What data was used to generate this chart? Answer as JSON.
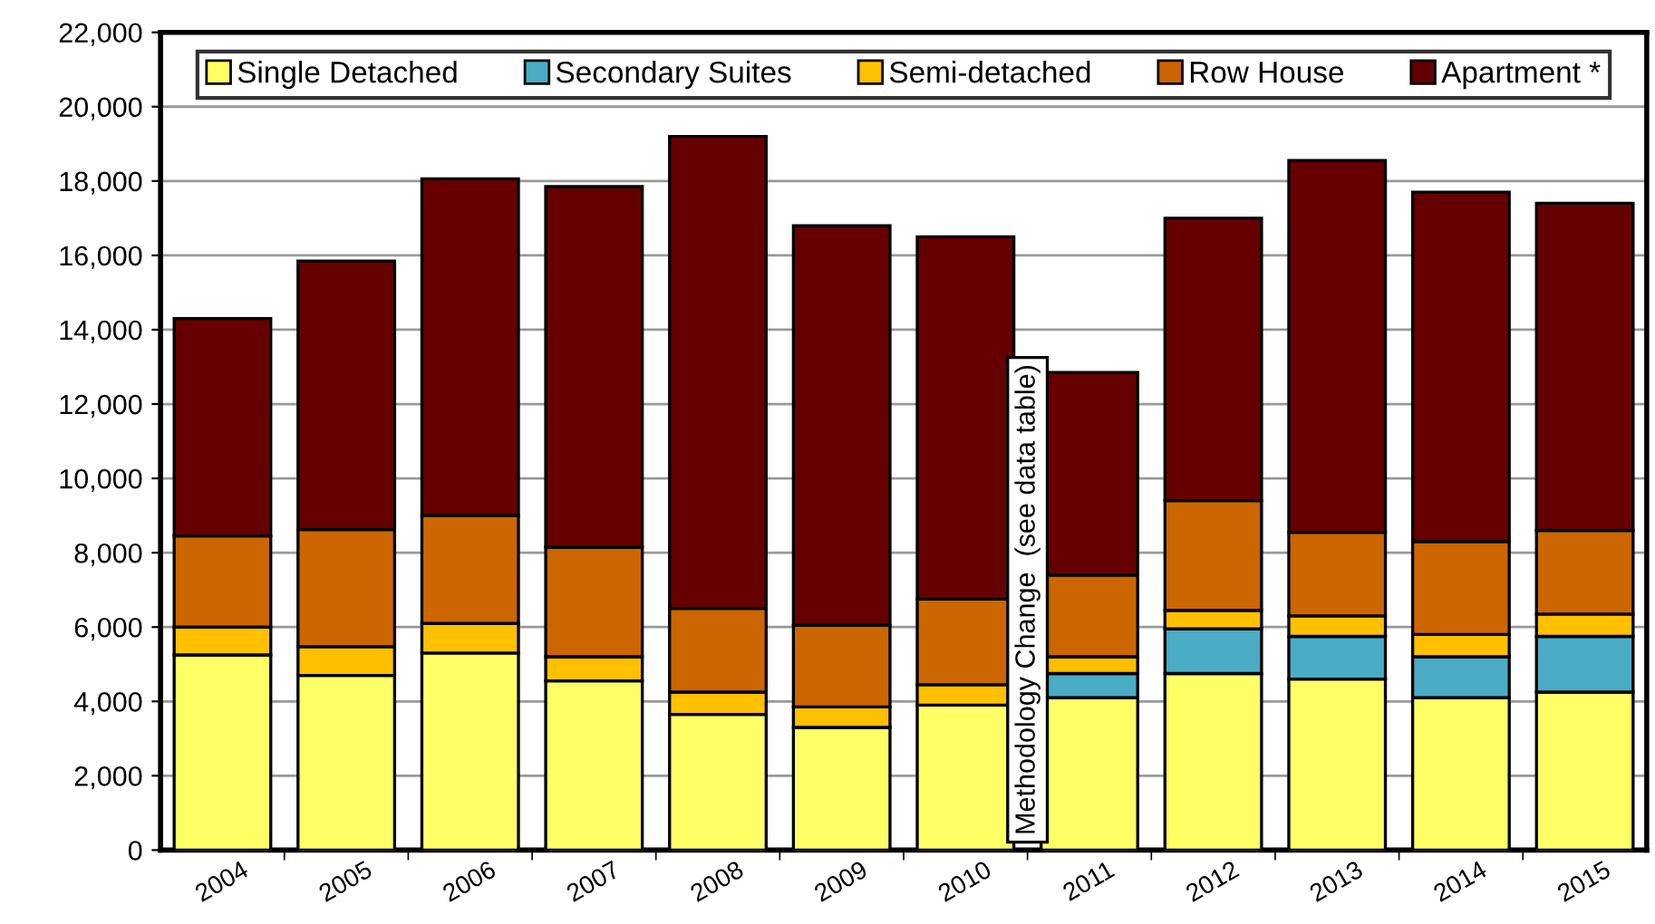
{
  "chart_data": {
    "type": "bar",
    "stacked": true,
    "categories": [
      "2004",
      "2005",
      "2006",
      "2007",
      "2008",
      "2009",
      "2010",
      "2011",
      "2012",
      "2013",
      "2014",
      "2015"
    ],
    "series": [
      {
        "name": "Single Detached",
        "color": "#ffff66",
        "values": [
          5250,
          4700,
          5300,
          4550,
          3650,
          3300,
          3900,
          4100,
          4750,
          4600,
          4100,
          4250
        ]
      },
      {
        "name": "Secondary Suites",
        "color": "#4bacc6",
        "values": [
          null,
          null,
          null,
          null,
          null,
          null,
          null,
          650,
          1200,
          1150,
          1100,
          1500
        ]
      },
      {
        "name": "Semi-detached",
        "color": "#ffc000",
        "values": [
          750,
          770,
          800,
          650,
          600,
          550,
          550,
          450,
          500,
          550,
          600,
          600
        ]
      },
      {
        "name": "Row House",
        "color": "#cc6600",
        "values": [
          2450,
          3150,
          2900,
          2950,
          2250,
          2200,
          2300,
          2200,
          2950,
          2250,
          2500,
          2250
        ]
      },
      {
        "name": "Apartment *",
        "color": "#660000",
        "values": [
          5850,
          7230,
          9060,
          9700,
          12700,
          10750,
          9750,
          5450,
          7600,
          10000,
          9400,
          8800
        ]
      }
    ],
    "ylim": [
      0,
      22000
    ],
    "yticks": [
      {
        "value": 0,
        "label": "0"
      },
      {
        "value": 2000,
        "label": "2,000"
      },
      {
        "value": 4000,
        "label": "4,000"
      },
      {
        "value": 6000,
        "label": "6,000"
      },
      {
        "value": 8000,
        "label": "8,000"
      },
      {
        "value": 10000,
        "label": "10,000"
      },
      {
        "value": 12000,
        "label": "12,000"
      },
      {
        "value": 14000,
        "label": "14,000"
      },
      {
        "value": 16000,
        "label": "16,000"
      },
      {
        "value": 18000,
        "label": "18,000"
      },
      {
        "value": 20000,
        "label": "20,000"
      },
      {
        "value": 22000,
        "label": "22,000"
      }
    ],
    "grid": "y",
    "legend": "top",
    "annotations": [
      "Methodology Change  (see data table)"
    ]
  }
}
